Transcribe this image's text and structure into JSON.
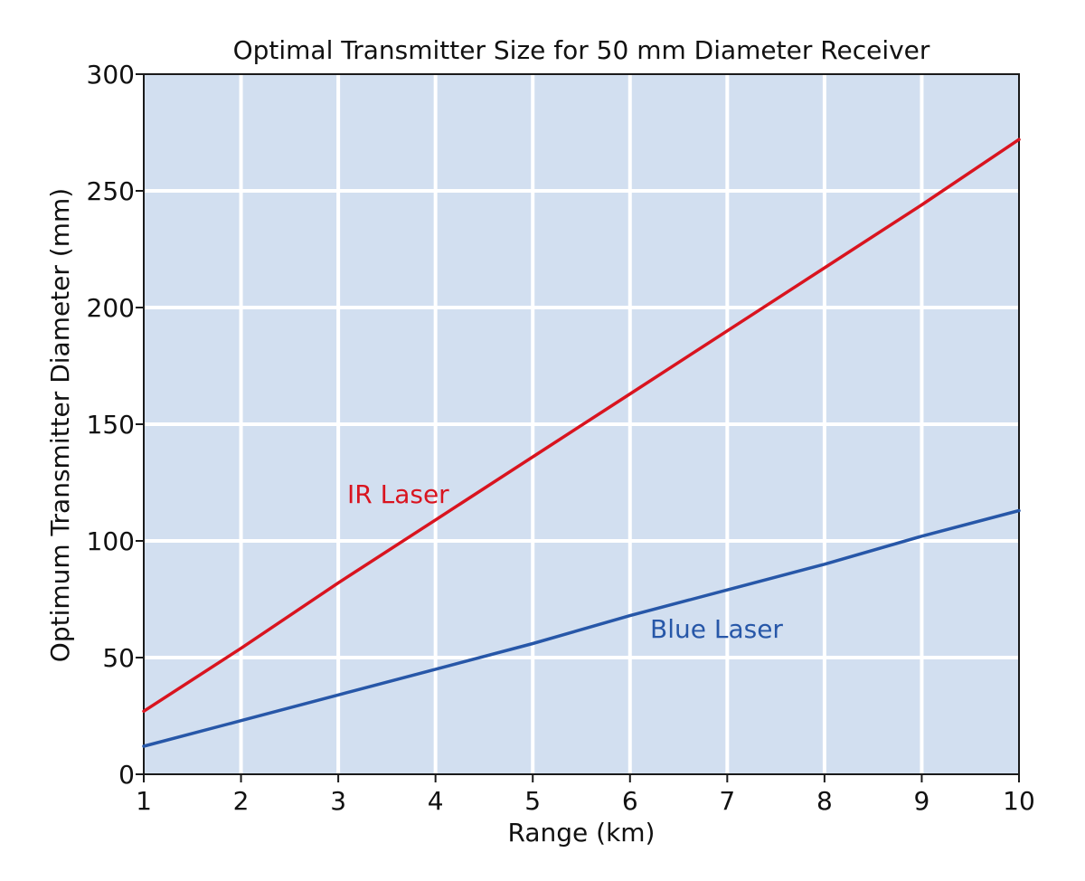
{
  "chart_data": {
    "type": "line",
    "title": "Optimal Transmitter Size for 50 mm Diameter Receiver",
    "xlabel": "Range (km)",
    "ylabel": "Optimum Transmitter Diameter (mm)",
    "xlim": [
      1,
      10
    ],
    "ylim": [
      0,
      300
    ],
    "x_ticks": [
      "1",
      "2",
      "3",
      "4",
      "5",
      "6",
      "7",
      "8",
      "9",
      "10"
    ],
    "y_ticks": [
      "0",
      "50",
      "100",
      "150",
      "200",
      "250",
      "300"
    ],
    "grid": true,
    "background_color": "#d2dff0",
    "grid_color": "#ffffff",
    "series": [
      {
        "name": "IR Laser",
        "color": "#d9141f",
        "x": [
          1,
          2,
          3,
          4,
          5,
          6,
          7,
          8,
          9,
          10
        ],
        "y": [
          27,
          54,
          82,
          109,
          136,
          163,
          190,
          217,
          244,
          272
        ]
      },
      {
        "name": "Blue Laser",
        "color": "#2757a8",
        "x": [
          1,
          2,
          3,
          4,
          5,
          6,
          7,
          8,
          9,
          10
        ],
        "y": [
          12,
          23,
          34,
          45,
          56,
          68,
          79,
          90,
          102,
          113
        ]
      }
    ]
  }
}
